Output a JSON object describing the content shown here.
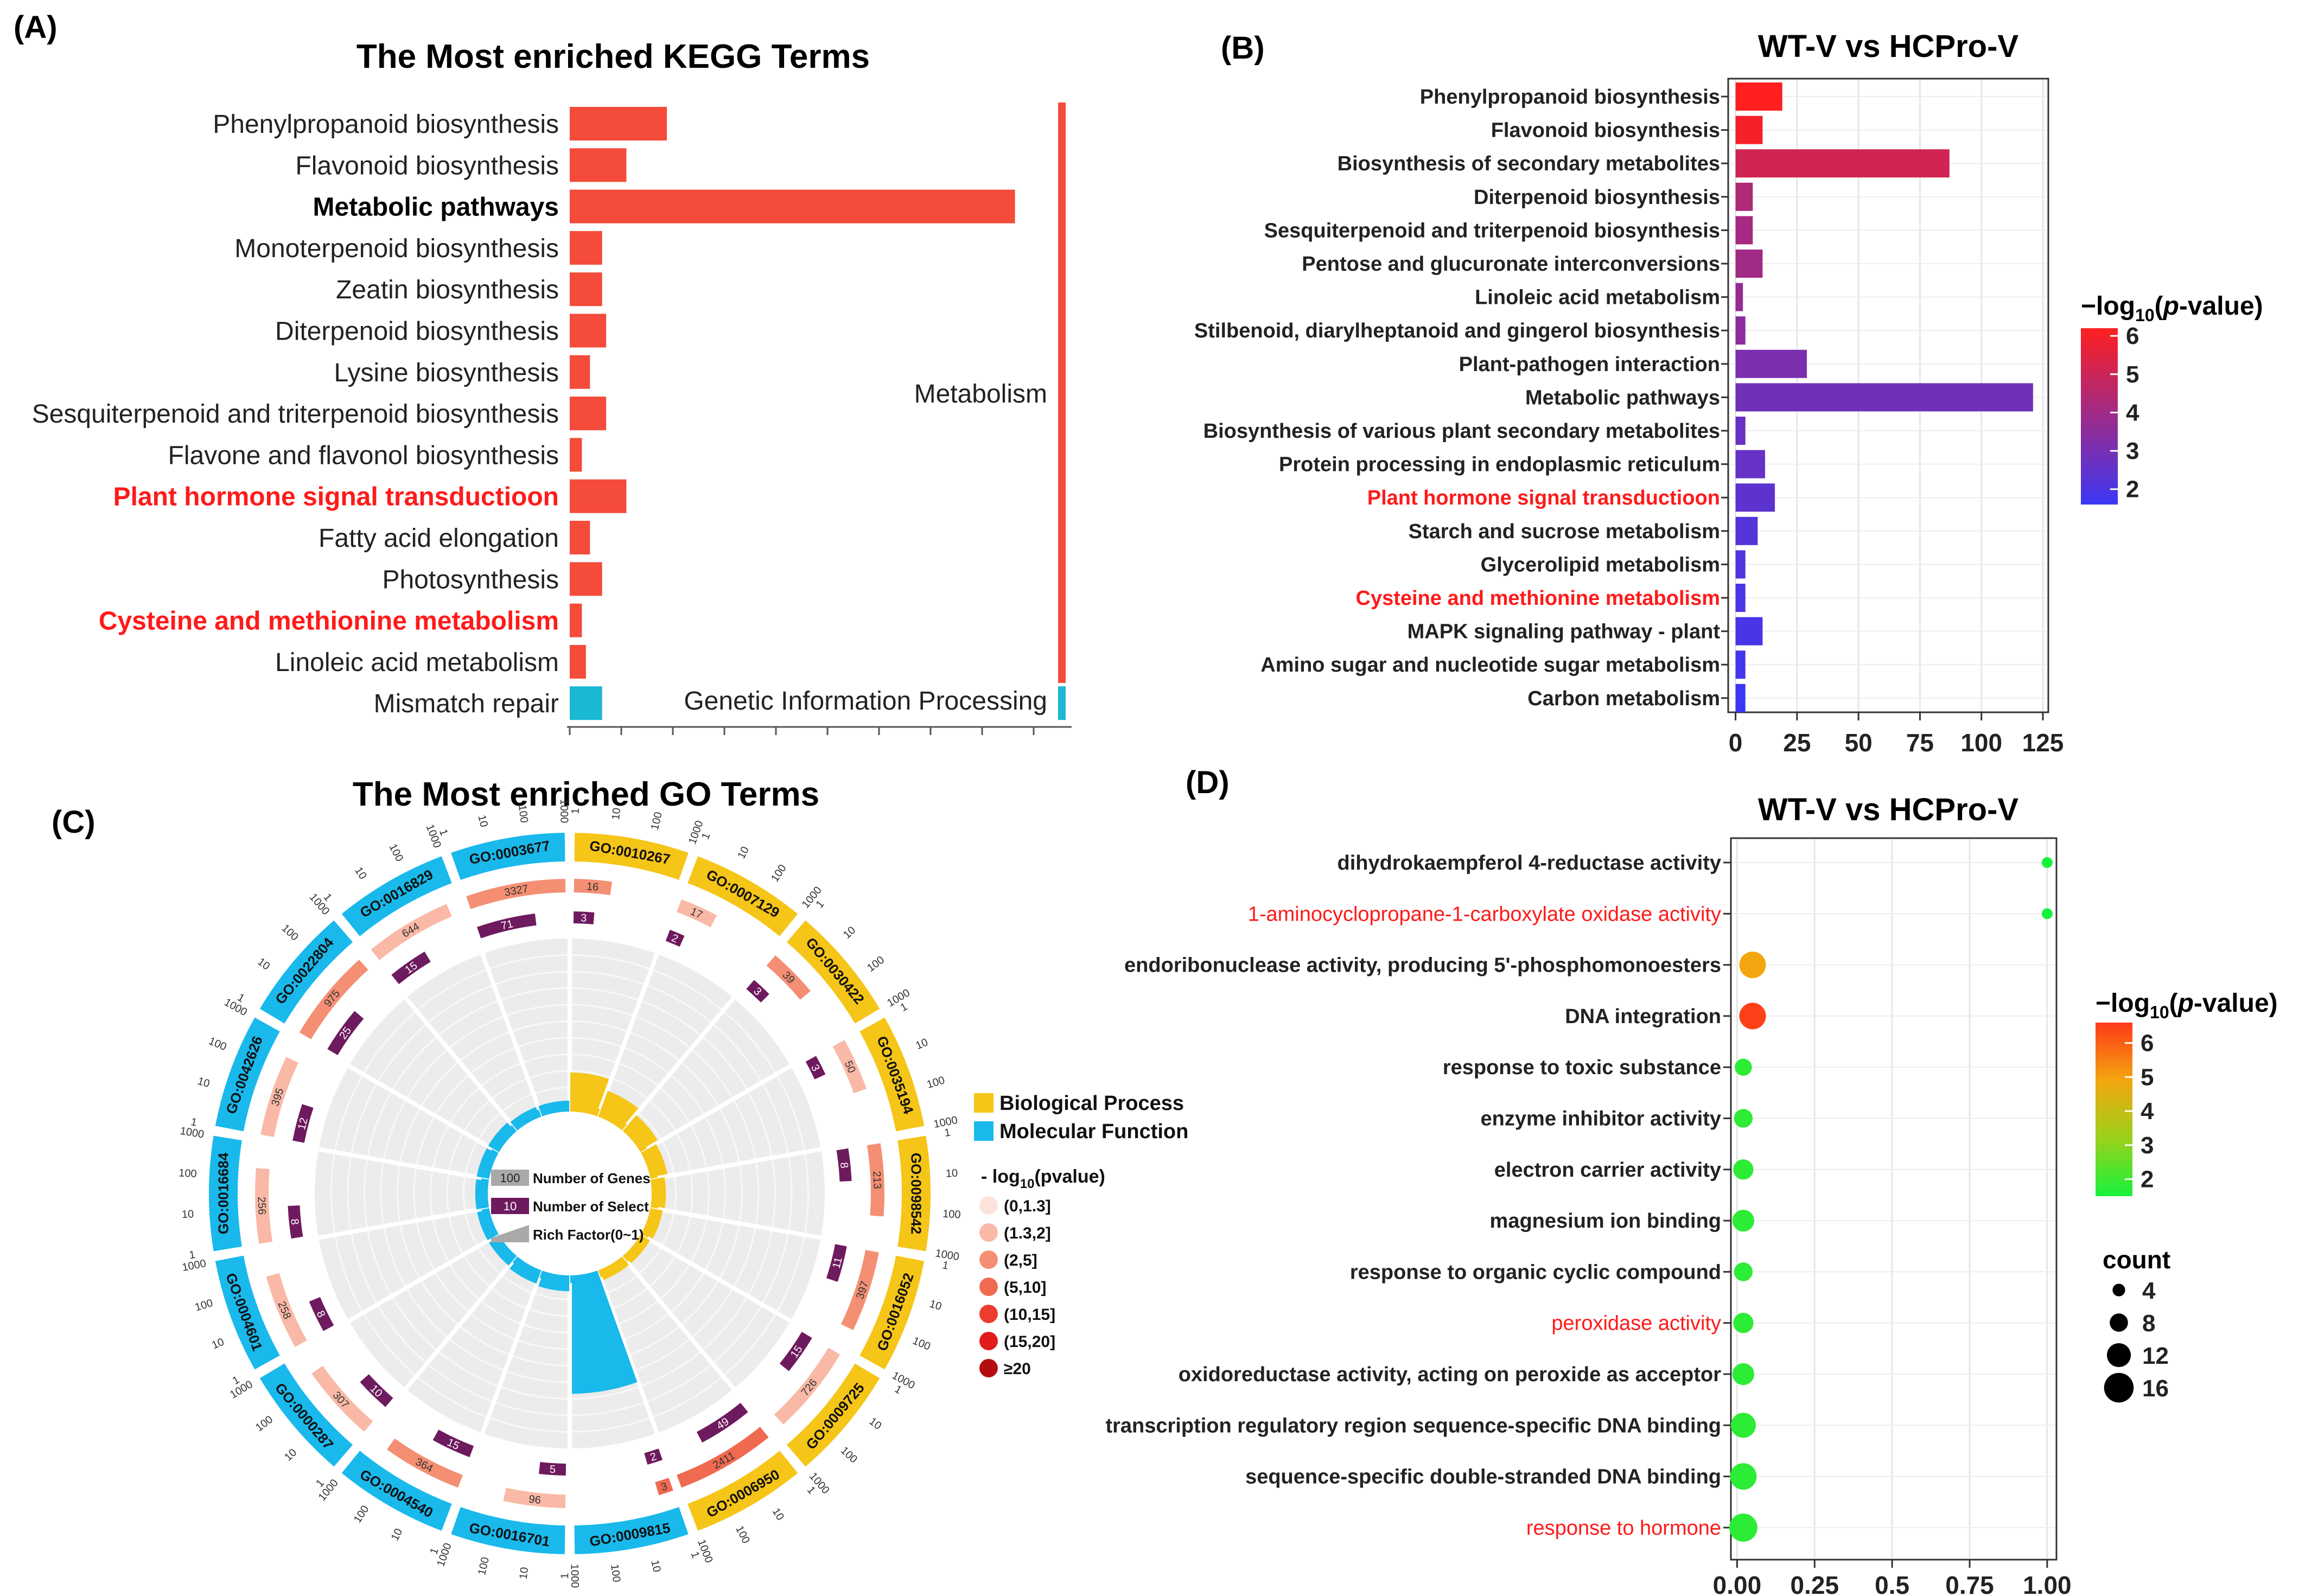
{
  "panel_labels": [
    "(A)",
    "(B)",
    "(C)",
    "(D)"
  ],
  "chart_data": [
    {
      "id": "A",
      "type": "bar",
      "title": "The Most enriched KEGG Terms",
      "orientation": "horizontal",
      "categories": [
        "Phenylpropanoid biosynthesis",
        "Flavonoid biosynthesis",
        "Metabolic pathways",
        "Monoterpenoid biosynthesis",
        "Zeatin biosynthesis",
        "Diterpenoid biosynthesis",
        "Lysine biosynthesis",
        "Sesquiterpenoid and triterpenoid biosynthesis",
        "Flavone and flavonol biosynthesis",
        "Plant hormone signal transductioon",
        "Fatty acid elongation",
        "Photosynthesis",
        "Cysteine and methionine metabolism",
        "Linoleic acid metabolism",
        "Mismatch repair"
      ],
      "values": [
        12,
        7,
        55,
        4,
        4,
        4.5,
        2.5,
        4.5,
        1.5,
        7,
        2.5,
        4,
        1.5,
        2,
        4
      ],
      "groups": [
        "Metabolism",
        "Metabolism",
        "Metabolism",
        "Metabolism",
        "Metabolism",
        "Metabolism",
        "Metabolism",
        "Metabolism",
        "Metabolism",
        "Metabolism",
        "Metabolism",
        "Metabolism",
        "Metabolism",
        "Metabolism",
        "Genetic Information Processing"
      ],
      "group_labels": [
        "Metabolism",
        "Genetic Information Processing"
      ],
      "highlighted": [
        "Metabolic pathways",
        "Plant hormone signal transductioon",
        "Cysteine and methionine metabolism"
      ],
      "xlim": [
        0,
        62
      ],
      "colors": {
        "Metabolism": "#f44b3a",
        "Genetic Information Processing": "#1ab8d2",
        "highlight": "#ff1a1a"
      }
    },
    {
      "id": "B",
      "type": "bar",
      "title": "WT-V vs HCPro-V",
      "orientation": "horizontal",
      "categories": [
        "Phenylpropanoid biosynthesis",
        "Flavonoid biosynthesis",
        "Biosynthesis of secondary metabolites",
        "Diterpenoid biosynthesis",
        "Sesquiterpenoid and triterpenoid biosynthesis",
        "Pentose and glucuronate interconversions",
        "Linoleic acid metabolism",
        "Stilbenoid, diarylheptanoid and gingerol biosynthesis",
        "Plant-pathogen interaction",
        "Metabolic pathways",
        "Biosynthesis of various plant secondary metabolites",
        "Protein processing in endoplasmic reticulum",
        "Plant hormone signal transductioon",
        "Starch and sucrose metabolism",
        "Glycerolipid metabolism",
        "Cysteine and methionine metabolism",
        "MAPK signaling pathway - plant",
        "Amino sugar and nucleotide sugar metabolism",
        "Carbon metabolism"
      ],
      "values": [
        19,
        11,
        87,
        7,
        7,
        11,
        3,
        4,
        29,
        121,
        4,
        12,
        16,
        9,
        4,
        4,
        11,
        4,
        4
      ],
      "neglog10p": [
        6.2,
        6.0,
        5.1,
        4.3,
        4.1,
        4.0,
        3.7,
        3.5,
        3.1,
        2.9,
        2.7,
        2.6,
        2.4,
        2.2,
        2.1,
        2.0,
        1.9,
        1.8,
        1.6
      ],
      "highlighted": [
        "Plant hormone signal transductioon",
        "Cysteine and methionine metabolism"
      ],
      "xticks": [
        "0",
        "25",
        "50",
        "75",
        "100",
        "125"
      ],
      "xlim": [
        -3,
        125
      ],
      "legend": {
        "title_prefix": "−log",
        "title_sub": "10",
        "title_open": "(",
        "title_p": "p",
        "title_suffix": "-value)",
        "ticks": [
          "6",
          "5",
          "4",
          "3",
          "2"
        ],
        "range": [
          1.6,
          6.2
        ],
        "color_low": "#3b37f5",
        "color_high": "#ff1f1f"
      }
    },
    {
      "id": "C",
      "type": "circular",
      "title": "The Most enriched GO Terms",
      "terms": [
        {
          "id": "GO:0010267",
          "category": "Biological Process",
          "genes": 16,
          "select": 3,
          "rich": 0.19,
          "p_bin": 2
        },
        {
          "id": "GO:0007129",
          "category": "Biological Process",
          "genes": 17,
          "select": 2,
          "rich": 0.12,
          "p_bin": 1
        },
        {
          "id": "GO:0030422",
          "category": "Biological Process",
          "genes": 39,
          "select": 3,
          "rich": 0.08,
          "p_bin": 2
        },
        {
          "id": "GO:0035194",
          "category": "Biological Process",
          "genes": 50,
          "select": 3,
          "rich": 0.06,
          "p_bin": 1
        },
        {
          "id": "GO:0098542",
          "category": "Biological Process",
          "genes": 213,
          "select": 8,
          "rich": 0.04,
          "p_bin": 2
        },
        {
          "id": "GO:0016052",
          "category": "Biological Process",
          "genes": 397,
          "select": 11,
          "rich": 0.03,
          "p_bin": 2
        },
        {
          "id": "GO:0009725",
          "category": "Biological Process",
          "genes": 726,
          "select": 15,
          "rich": 0.02,
          "p_bin": 1
        },
        {
          "id": "GO:0006950",
          "category": "Biological Process",
          "genes": 2411,
          "select": 49,
          "rich": 0.02,
          "p_bin": 3
        },
        {
          "id": "GO:0009815",
          "category": "Molecular Function",
          "genes": 3,
          "select": 2,
          "rich": 0.67,
          "p_bin": 3
        },
        {
          "id": "GO:0016701",
          "category": "Molecular Function",
          "genes": 96,
          "select": 5,
          "rich": 0.05,
          "p_bin": 1
        },
        {
          "id": "GO:0004540",
          "category": "Molecular Function",
          "genes": 364,
          "select": 15,
          "rich": 0.04,
          "p_bin": 2
        },
        {
          "id": "GO:0000287",
          "category": "Molecular Function",
          "genes": 307,
          "select": 10,
          "rich": 0.03,
          "p_bin": 1
        },
        {
          "id": "GO:0004601",
          "category": "Molecular Function",
          "genes": 258,
          "select": 8,
          "rich": 0.03,
          "p_bin": 1
        },
        {
          "id": "GO:0016684",
          "category": "Molecular Function",
          "genes": 256,
          "select": 8,
          "rich": 0.03,
          "p_bin": 1
        },
        {
          "id": "GO:0042626",
          "category": "Molecular Function",
          "genes": 395,
          "select": 12,
          "rich": 0.03,
          "p_bin": 1
        },
        {
          "id": "GO:0022804",
          "category": "Molecular Function",
          "genes": 975,
          "select": 25,
          "rich": 0.03,
          "p_bin": 2
        },
        {
          "id": "GO:0016829",
          "category": "Molecular Function",
          "genes": 644,
          "select": 15,
          "rich": 0.02,
          "p_bin": 1
        },
        {
          "id": "GO:0003677",
          "category": "Molecular Function",
          "genes": 3327,
          "select": 71,
          "rich": 0.02,
          "p_bin": 2
        }
      ],
      "scale_ticks": [
        "1",
        "10",
        "100",
        "1000"
      ],
      "category_colors": {
        "Biological Process": "#f5c518",
        "Molecular Function": "#19b9ec"
      },
      "select_color": "#6e1a5e",
      "center_legend": [
        "Number of Genes",
        "Number of Select",
        "Rich Factor(0~1)"
      ],
      "center_legend_samples": [
        "100",
        "10"
      ],
      "category_legend": [
        "Biological Process",
        "Molecular Function"
      ],
      "pvalue_legend_title": {
        "prefix": "- log",
        "sub": "10",
        "suffix": "(pvalue)"
      },
      "pvalue_bins": [
        "(0,1.3]",
        "(1.3,2]",
        "(2,5]",
        "(5,10]",
        "(10,15]",
        "(15,20]",
        "≥20"
      ],
      "pvalue_colors": [
        "#fde2dc",
        "#f9b9a6",
        "#f48f74",
        "#f06a50",
        "#ed3d30",
        "#e21b1b",
        "#b30d12"
      ]
    },
    {
      "id": "D",
      "type": "scatter",
      "title": "WT-V vs HCPro-V",
      "categories": [
        "dihydrokaempferol 4-reductase activity",
        "1-aminocyclopropane-1-carboxylate oxidase activity",
        "endoribonuclease activity, producing 5'-phosphomonoesters",
        "DNA integration",
        "response to toxic substance",
        "enzyme inhibitor activity",
        "electron carrier activity",
        "magnesium ion binding",
        "response to organic cyclic compound",
        "peroxidase activity",
        "oxidoreductase activity, acting on peroxide as acceptor",
        "transcription regulatory region sequence-specific DNA binding",
        "sequence-specific double-stranded DNA binding",
        "response to hormone"
      ],
      "x": [
        1.0,
        1.0,
        0.05,
        0.05,
        0.02,
        0.02,
        0.02,
        0.02,
        0.02,
        0.02,
        0.02,
        0.02,
        0.02,
        0.02
      ],
      "count": [
        2,
        2,
        12,
        12,
        6,
        7,
        8,
        9,
        7,
        8,
        9,
        11,
        12,
        13
      ],
      "neglog10p": [
        1.5,
        1.5,
        4.9,
        6.5,
        1.8,
        1.8,
        1.8,
        1.8,
        1.8,
        1.8,
        1.8,
        1.8,
        1.8,
        1.8
      ],
      "highlighted": [
        "1-aminocyclopropane-1-carboxylate oxidase activity",
        "peroxidase activity",
        "response to hormone"
      ],
      "xticks": [
        "0.00",
        "0.25",
        "0.5",
        "0.75",
        "1.00"
      ],
      "xlim": [
        -0.02,
        1.03
      ],
      "color_legend": {
        "title_prefix": "−log",
        "title_sub": "10",
        "title_open": "(",
        "title_p": "p",
        "title_suffix": "-value)",
        "ticks": [
          "6",
          "5",
          "4",
          "3",
          "2"
        ],
        "range": [
          1.5,
          6.6
        ],
        "colors": [
          "#16f23c",
          "#9bd11b",
          "#f3a60f",
          "#ff3a1a"
        ]
      },
      "size_legend": {
        "title": "count",
        "values": [
          4,
          8,
          12,
          16
        ],
        "labels": [
          "4",
          "8",
          "12",
          "16"
        ]
      }
    }
  ]
}
